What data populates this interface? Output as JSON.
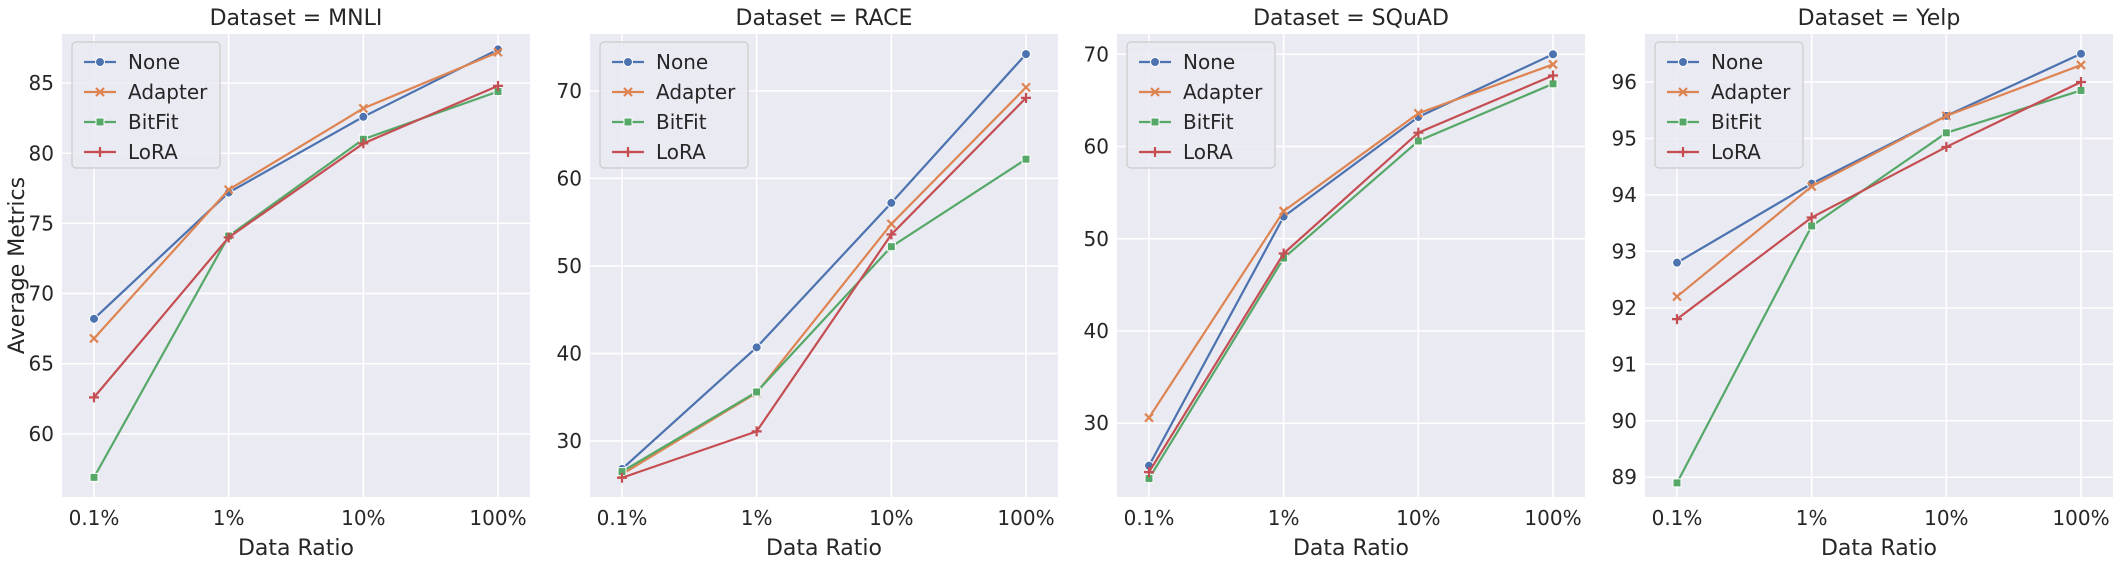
{
  "colors": {
    "plot_bg": "#EAEAF2",
    "grid": "#FFFFFF",
    "text": "#262626",
    "legend_bg": "#EAEAF2",
    "legend_border": "#CCCCCC"
  },
  "chart_data": [
    {
      "type": "line",
      "title": "Dataset = MNLI",
      "xlabel": "Data Ratio",
      "ylabel": "Average Metrics",
      "categories": [
        "0.1%",
        "1%",
        "10%",
        "100%"
      ],
      "ylim": [
        55.5,
        88.5
      ],
      "yticks": [
        60,
        65,
        70,
        75,
        80,
        85
      ],
      "grid": true,
      "legend_position": "top-left",
      "series": [
        {
          "name": "None",
          "color": "#4C72B0",
          "marker": "circle",
          "values": [
            68.2,
            77.2,
            82.6,
            87.4
          ]
        },
        {
          "name": "Adapter",
          "color": "#DD8452",
          "marker": "x",
          "values": [
            66.8,
            77.4,
            83.2,
            87.2
          ]
        },
        {
          "name": "BitFit",
          "color": "#55A868",
          "marker": "square",
          "values": [
            56.9,
            74.1,
            81.0,
            84.4
          ]
        },
        {
          "name": "LoRA",
          "color": "#C44E52",
          "marker": "plus",
          "values": [
            62.6,
            74.0,
            80.7,
            84.8
          ]
        }
      ]
    },
    {
      "type": "line",
      "title": "Dataset = RACE",
      "xlabel": "Data Ratio",
      "ylabel": "",
      "categories": [
        "0.1%",
        "1%",
        "10%",
        "100%"
      ],
      "ylim": [
        23.6,
        76.5
      ],
      "yticks": [
        30,
        40,
        50,
        60,
        70
      ],
      "grid": true,
      "legend_position": "top-left",
      "series": [
        {
          "name": "None",
          "color": "#4C72B0",
          "marker": "circle",
          "values": [
            26.8,
            40.7,
            57.2,
            74.2
          ]
        },
        {
          "name": "Adapter",
          "color": "#DD8452",
          "marker": "x",
          "values": [
            26.2,
            35.5,
            54.8,
            70.4
          ]
        },
        {
          "name": "BitFit",
          "color": "#55A868",
          "marker": "square",
          "values": [
            26.5,
            35.6,
            52.2,
            62.2
          ]
        },
        {
          "name": "LoRA",
          "color": "#C44E52",
          "marker": "plus",
          "values": [
            25.8,
            31.1,
            53.6,
            69.2
          ]
        }
      ]
    },
    {
      "type": "line",
      "title": "Dataset = SQuAD",
      "xlabel": "Data Ratio",
      "ylabel": "",
      "categories": [
        "0.1%",
        "1%",
        "10%",
        "100%"
      ],
      "ylim": [
        22.0,
        72.2
      ],
      "yticks": [
        30,
        40,
        50,
        60,
        70
      ],
      "grid": true,
      "legend_position": "top-left",
      "series": [
        {
          "name": "None",
          "color": "#4C72B0",
          "marker": "circle",
          "values": [
            25.4,
            52.4,
            63.2,
            70.0
          ]
        },
        {
          "name": "Adapter",
          "color": "#DD8452",
          "marker": "x",
          "values": [
            30.6,
            53.0,
            63.6,
            68.9
          ]
        },
        {
          "name": "BitFit",
          "color": "#55A868",
          "marker": "square",
          "values": [
            24.0,
            47.9,
            60.6,
            66.8
          ]
        },
        {
          "name": "LoRA",
          "color": "#C44E52",
          "marker": "plus",
          "values": [
            24.7,
            48.4,
            61.5,
            67.7
          ]
        }
      ]
    },
    {
      "type": "line",
      "title": "Dataset = Yelp",
      "xlabel": "Data Ratio",
      "ylabel": "",
      "categories": [
        "0.1%",
        "1%",
        "10%",
        "100%"
      ],
      "ylim": [
        88.65,
        96.85
      ],
      "yticks": [
        89,
        90,
        91,
        92,
        93,
        94,
        95,
        96
      ],
      "grid": true,
      "legend_position": "top-left",
      "series": [
        {
          "name": "None",
          "color": "#4C72B0",
          "marker": "circle",
          "values": [
            92.8,
            94.2,
            95.4,
            96.5
          ]
        },
        {
          "name": "Adapter",
          "color": "#DD8452",
          "marker": "x",
          "values": [
            92.2,
            94.15,
            95.4,
            96.3
          ]
        },
        {
          "name": "BitFit",
          "color": "#55A868",
          "marker": "square",
          "values": [
            88.9,
            93.45,
            95.1,
            95.85
          ]
        },
        {
          "name": "LoRA",
          "color": "#C44E52",
          "marker": "plus",
          "values": [
            91.8,
            93.6,
            94.85,
            96.0
          ]
        }
      ]
    }
  ]
}
